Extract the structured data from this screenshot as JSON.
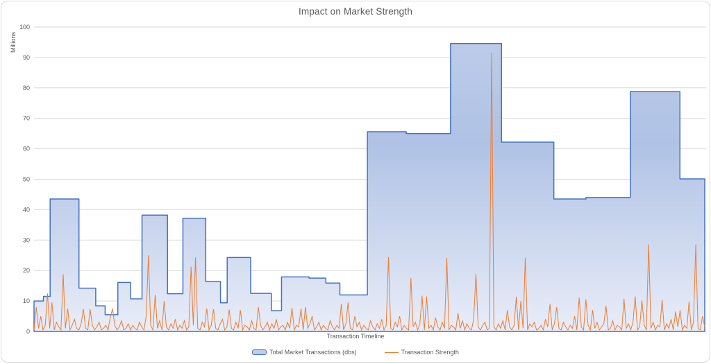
{
  "chart": {
    "title": "Impact on Market Strength",
    "y_axis": {
      "unit_label": "Millions",
      "min": 0,
      "max": 100,
      "step": 10,
      "tick_labels": [
        "0",
        "10",
        "20",
        "30",
        "40",
        "50",
        "60",
        "70",
        "80",
        "90",
        "100"
      ]
    },
    "x_axis": {
      "title": "Transaction Timeline"
    },
    "legend": {
      "items": [
        {
          "label": "Total Market Transactions (dbs)",
          "swatch": "area",
          "stroke": "#4472C4",
          "fill": "#BDCCEA"
        },
        {
          "label": "Transaction Strength",
          "swatch": "line",
          "stroke": "#ED7D31"
        }
      ]
    },
    "colors": {
      "grid": "#D9D9D9",
      "text": "#595959",
      "area_stroke": "#4472C4",
      "area_fill_top": "#BFCDEA",
      "area_fill_mid": "#AFC2E5",
      "area_fill_bottom": "#E9EDF8",
      "line": "#ED7D31",
      "frame_border": "#D8D8D8",
      "background": "#FFFFFF"
    }
  },
  "chart_data": {
    "type": "area",
    "title": "Impact on Market Strength",
    "xlabel": "Transaction Timeline",
    "ylabel": "Millions",
    "ylim": [
      0,
      100
    ],
    "grid": true,
    "legend_position": "bottom",
    "series": [
      {
        "name": "Total Market Transactions (dbs)",
        "type": "stepped_area",
        "color": "#4472C4",
        "segments": [
          [
            0.0,
            0.014,
            10.0
          ],
          [
            0.014,
            0.024,
            11.5
          ],
          [
            0.024,
            0.067,
            43.5
          ],
          [
            0.067,
            0.092,
            14.2
          ],
          [
            0.092,
            0.106,
            8.4
          ],
          [
            0.106,
            0.125,
            5.5
          ],
          [
            0.125,
            0.144,
            16.1
          ],
          [
            0.144,
            0.161,
            10.7
          ],
          [
            0.161,
            0.199,
            38.2
          ],
          [
            0.199,
            0.222,
            12.4
          ],
          [
            0.222,
            0.256,
            37.2
          ],
          [
            0.256,
            0.278,
            16.4
          ],
          [
            0.278,
            0.288,
            9.4
          ],
          [
            0.288,
            0.323,
            24.3
          ],
          [
            0.323,
            0.354,
            12.5
          ],
          [
            0.354,
            0.369,
            6.8
          ],
          [
            0.369,
            0.41,
            17.9
          ],
          [
            0.41,
            0.435,
            17.5
          ],
          [
            0.435,
            0.456,
            15.9
          ],
          [
            0.456,
            0.497,
            12.0
          ],
          [
            0.497,
            0.555,
            65.6
          ],
          [
            0.555,
            0.621,
            65.0
          ],
          [
            0.621,
            0.697,
            94.6
          ],
          [
            0.697,
            0.775,
            62.2
          ],
          [
            0.775,
            0.823,
            43.5
          ],
          [
            0.823,
            0.889,
            44.0
          ],
          [
            0.889,
            0.963,
            78.8
          ],
          [
            0.963,
            1.0,
            50.1
          ]
        ]
      },
      {
        "name": "Transaction Strength",
        "type": "line",
        "color": "#ED7D31",
        "x_min": 0,
        "x_max": 1,
        "values": [
          0.5,
          8,
          1,
          5,
          0.5,
          2,
          12.5,
          1,
          9.5,
          0.5,
          3,
          1.5,
          0.5,
          18.8,
          1,
          7.5,
          0.5,
          2,
          4,
          1,
          0.5,
          2.5,
          7.3,
          1,
          0.5,
          7.3,
          2,
          0.5,
          1.5,
          3,
          0.5,
          1,
          2,
          0.5,
          4.5,
          7.5,
          2,
          0.5,
          1.5,
          3.5,
          0.5,
          1,
          2.5,
          0.5,
          2,
          1,
          0.5,
          3,
          1.5,
          0.5,
          5,
          25,
          2,
          0.5,
          12,
          1,
          3.5,
          0.5,
          10,
          1.5,
          0.5,
          2.5,
          1,
          4,
          0.5,
          2,
          1,
          3.5,
          0.5,
          1.5,
          21.3,
          2,
          24.3,
          1,
          0.5,
          3,
          1.5,
          7.5,
          0.5,
          2,
          7.3,
          1,
          0.5,
          2.5,
          4,
          0.5,
          1.5,
          7.2,
          1,
          0.5,
          3,
          1,
          7,
          0.5,
          2,
          1.5,
          0.5,
          3.5,
          1,
          0.5,
          8,
          2,
          0.5,
          1.5,
          3,
          0.5,
          2.5,
          1,
          4,
          0.5,
          1.5,
          2,
          0.5,
          3,
          1,
          7.8,
          0.5,
          2,
          1.5,
          7.5,
          0.5,
          8,
          1,
          2.5,
          5,
          0.5,
          1.5,
          3,
          0.5,
          2,
          1,
          0.5,
          3.5,
          1.5,
          0.5,
          2,
          1,
          9,
          0.5,
          2.5,
          9.5,
          1,
          0.5,
          5,
          1.5,
          3,
          0.5,
          2,
          1,
          0.5,
          3.5,
          1.5,
          0.5,
          2.5,
          1,
          4,
          0.5,
          2,
          24.4,
          1,
          0.5,
          3,
          1.5,
          5,
          0.5,
          2,
          1,
          0.5,
          17.5,
          1.5,
          3,
          0.5,
          2.5,
          11.7,
          0.5,
          11.5,
          1,
          2,
          0.5,
          4.5,
          1.5,
          0.5,
          3,
          1,
          24.2,
          0.5,
          2,
          1.5,
          0.5,
          6,
          1,
          3.5,
          0.5,
          2.5,
          1,
          0.5,
          4,
          18.9,
          1.5,
          0.5,
          2,
          3,
          0.5,
          1,
          91.5,
          1.5,
          0.5,
          2.5,
          1,
          3.5,
          0.5,
          7,
          1.5,
          0.5,
          2,
          11.4,
          0.5,
          10,
          1,
          24.2,
          0.5,
          2.5,
          1.5,
          3,
          0.5,
          1,
          2,
          0.5,
          4,
          1.5,
          9,
          0.5,
          2.5,
          8,
          1,
          0.5,
          3,
          1.5,
          0.5,
          2,
          1,
          5,
          0.5,
          11.1,
          1.5,
          0.5,
          10.5,
          2,
          0.5,
          7,
          1,
          3,
          0.5,
          1.5,
          2.5,
          8.4,
          0.5,
          1,
          3.5,
          0.5,
          2,
          1.5,
          0.5,
          10.8,
          1,
          2.5,
          0.5,
          3,
          11.5,
          0.5,
          1.5,
          10.2,
          2,
          0.5,
          28.6,
          1,
          3,
          0.5,
          2,
          1.5,
          10.3,
          0.5,
          2.5,
          1,
          4,
          0.5,
          6.5,
          1.5,
          7,
          0.5,
          2,
          1,
          9.8,
          0.5,
          3,
          28.6,
          1,
          0.5,
          5,
          1.5
        ]
      }
    ]
  }
}
